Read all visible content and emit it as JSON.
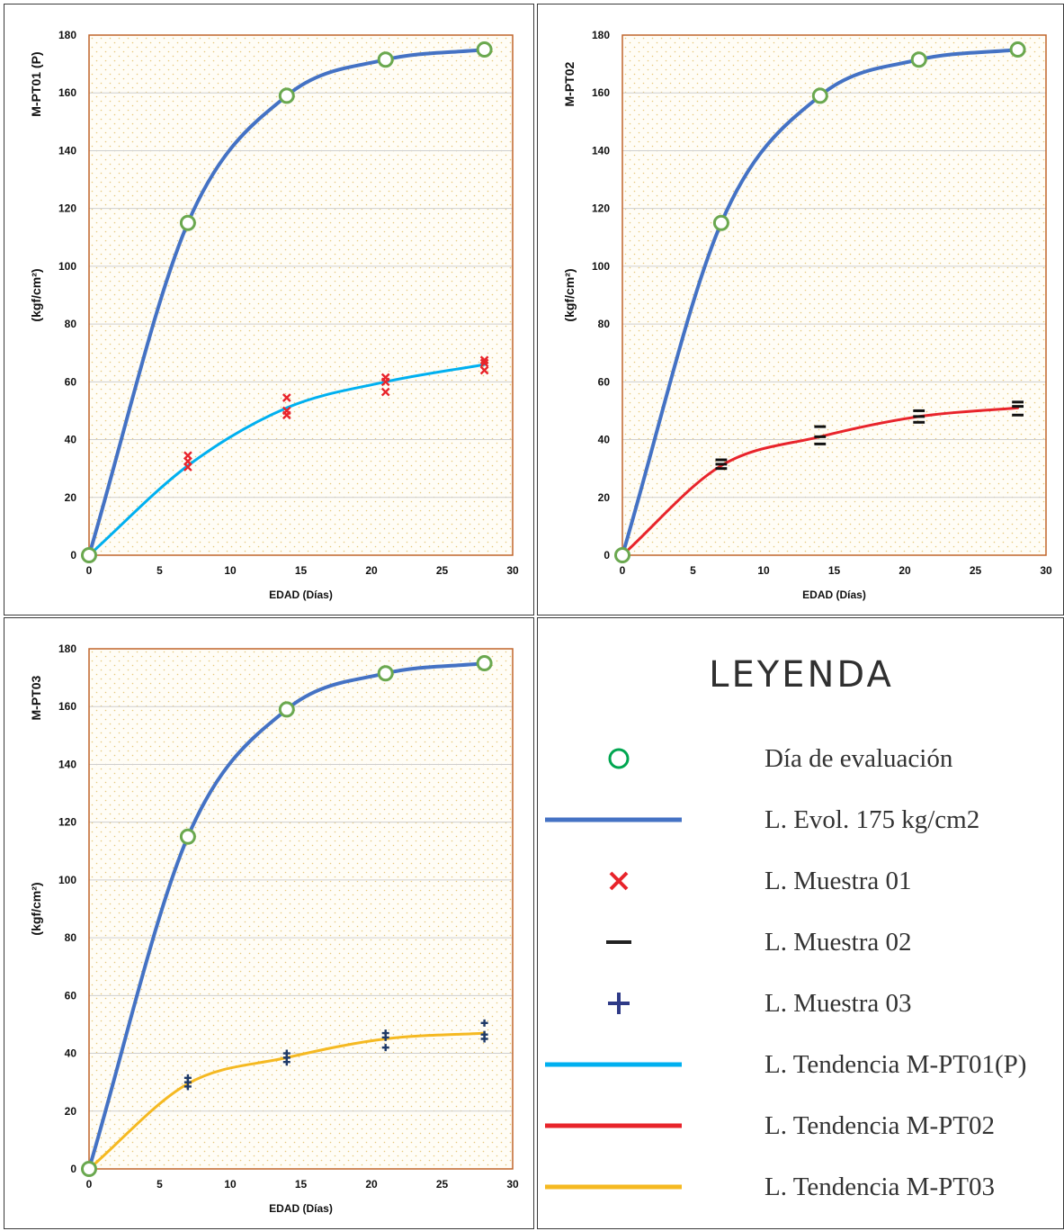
{
  "chart_data": [
    {
      "type": "line",
      "title": "",
      "side_label": "M-PT01 (P)",
      "xlabel": "EDAD (Días)",
      "ylabel": "(kgf/cm²)",
      "xlim": [
        0,
        30
      ],
      "ylim": [
        0,
        180
      ],
      "xticks": [
        0,
        5,
        10,
        15,
        20,
        25,
        30
      ],
      "yticks": [
        0,
        20,
        40,
        60,
        80,
        100,
        120,
        140,
        160,
        180
      ],
      "evolution": {
        "x": [
          0,
          7,
          14,
          21,
          28
        ],
        "y": [
          0,
          115,
          159,
          171.5,
          175
        ]
      },
      "trend": {
        "color": "#00b0f0",
        "x": [
          0,
          7,
          14,
          21,
          28
        ],
        "y": [
          0,
          31,
          51,
          60,
          66
        ]
      },
      "samples": {
        "marker": "x",
        "color": "#e8242b",
        "points": [
          [
            0,
            0
          ],
          [
            7,
            30.5
          ],
          [
            7,
            32.5
          ],
          [
            7,
            34.5
          ],
          [
            14,
            48.5
          ],
          [
            14,
            50
          ],
          [
            14,
            54.5
          ],
          [
            21,
            56.5
          ],
          [
            21,
            60
          ],
          [
            21,
            61.5
          ],
          [
            28,
            64
          ],
          [
            28,
            66.5
          ],
          [
            28,
            67.5
          ]
        ]
      }
    },
    {
      "type": "line",
      "title": "",
      "side_label": "M-PT02",
      "xlabel": "EDAD (Días)",
      "ylabel": "(kgf/cm²)",
      "xlim": [
        0,
        30
      ],
      "ylim": [
        0,
        180
      ],
      "xticks": [
        0,
        5,
        10,
        15,
        20,
        25,
        30
      ],
      "yticks": [
        0,
        20,
        40,
        60,
        80,
        100,
        120,
        140,
        160,
        180
      ],
      "evolution": {
        "x": [
          0,
          7,
          14,
          21,
          28
        ],
        "y": [
          0,
          115,
          159,
          171.5,
          175
        ]
      },
      "trend": {
        "color": "#e8242b",
        "x": [
          0,
          7,
          14,
          21,
          28
        ],
        "y": [
          0,
          31,
          41,
          48,
          51
        ]
      },
      "samples": {
        "marker": "dash",
        "color": "#111111",
        "points": [
          [
            0,
            0
          ],
          [
            7,
            30
          ],
          [
            7,
            31.5
          ],
          [
            7,
            33
          ],
          [
            14,
            38.5
          ],
          [
            14,
            41
          ],
          [
            14,
            44.5
          ],
          [
            21,
            46
          ],
          [
            21,
            48
          ],
          [
            21,
            50
          ],
          [
            28,
            48.5
          ],
          [
            28,
            51.5
          ],
          [
            28,
            53
          ]
        ]
      }
    },
    {
      "type": "line",
      "title": "",
      "side_label": "M-PT03",
      "xlabel": "EDAD (Días)",
      "ylabel": "(kgf/cm²)",
      "xlim": [
        0,
        30
      ],
      "ylim": [
        0,
        180
      ],
      "xticks": [
        0,
        5,
        10,
        15,
        20,
        25,
        30
      ],
      "yticks": [
        0,
        20,
        40,
        60,
        80,
        100,
        120,
        140,
        160,
        180
      ],
      "evolution": {
        "x": [
          0,
          7,
          14,
          21,
          28
        ],
        "y": [
          0,
          115,
          159,
          171.5,
          175
        ]
      },
      "trend": {
        "color": "#f5b921",
        "x": [
          0,
          7,
          14,
          21,
          28
        ],
        "y": [
          0,
          29.5,
          38.5,
          45,
          47
        ]
      },
      "samples": {
        "marker": "plus",
        "color": "#1f3a68",
        "points": [
          [
            0,
            0
          ],
          [
            7,
            28.5
          ],
          [
            7,
            30
          ],
          [
            7,
            31.5
          ],
          [
            14,
            37
          ],
          [
            14,
            38.5
          ],
          [
            14,
            40
          ],
          [
            21,
            42
          ],
          [
            21,
            45.5
          ],
          [
            21,
            47
          ],
          [
            28,
            45
          ],
          [
            28,
            46.5
          ],
          [
            28,
            50.5
          ]
        ]
      }
    }
  ],
  "legend": {
    "title": "LEYENDA",
    "items": [
      {
        "symbol": "circle",
        "color": "#00a650",
        "label": "Día de evaluación"
      },
      {
        "symbol": "line",
        "color": "#4472c4",
        "label": "L. Evol. 175 kg/cm2"
      },
      {
        "symbol": "x",
        "color": "#e8242b",
        "label": "L. Muestra 01"
      },
      {
        "symbol": "dash",
        "color": "#222222",
        "label": "L. Muestra 02"
      },
      {
        "symbol": "plus",
        "color": "#2e3a87",
        "label": "L. Muestra 03"
      },
      {
        "symbol": "line",
        "color": "#00b0f0",
        "label": "L. Tendencia M-PT01(P)"
      },
      {
        "symbol": "line",
        "color": "#e8242b",
        "label": "L. Tendencia M-PT02"
      },
      {
        "symbol": "line",
        "color": "#f5b921",
        "label": "L. Tendencia M-PT03"
      }
    ]
  },
  "colors": {
    "evolution_line": "#4472c4",
    "evaluation_marker_stroke": "#6aa84f",
    "plot_border": "#c0652a",
    "dot_grid": "#e6c87a"
  }
}
